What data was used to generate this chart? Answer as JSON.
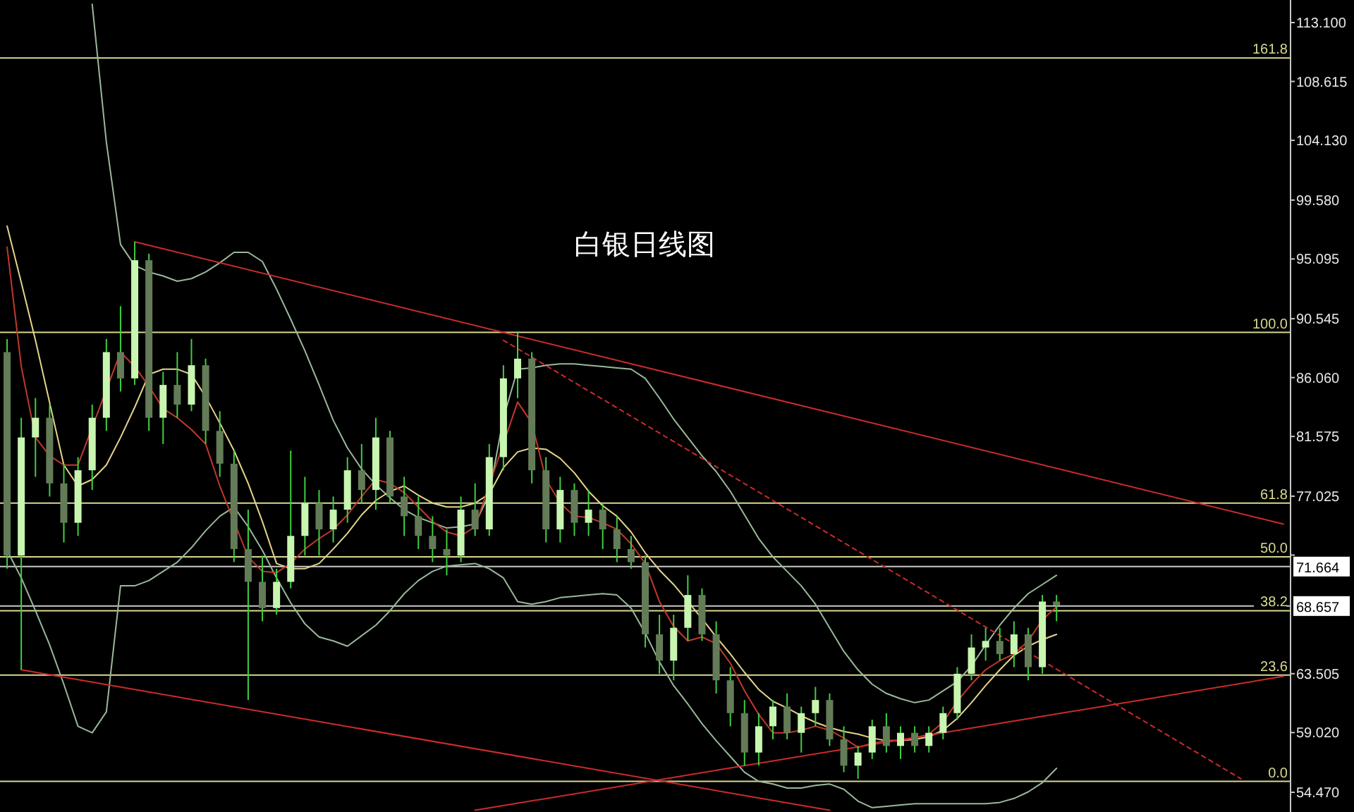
{
  "chart_data": {
    "type": "candlestick",
    "title": "白银日线图",
    "categories": [
      null,
      null,
      null,
      null,
      null,
      null,
      null,
      null,
      null,
      null,
      null,
      null,
      null,
      null,
      null,
      null,
      null,
      null,
      null,
      null,
      null,
      null,
      null,
      null,
      null,
      null,
      null,
      null,
      null,
      null,
      null,
      null,
      null,
      null,
      null,
      null,
      null,
      null,
      null,
      null,
      null,
      null,
      null,
      null,
      null,
      null,
      null,
      null,
      null,
      null,
      null,
      null,
      null,
      null,
      null,
      null,
      null,
      null,
      null,
      null,
      null,
      null,
      null,
      null,
      null,
      null,
      null,
      null,
      null,
      null,
      null,
      null,
      null,
      null,
      null,
      null,
      null,
      null,
      null,
      null,
      null,
      null,
      null,
      null,
      null,
      null,
      null,
      null,
      null,
      null,
      null
    ],
    "ylim": [
      52.97,
      114.82
    ],
    "tick_labels": "y",
    "yticks": [
      {
        "value": 113.1,
        "label": "113.100"
      },
      {
        "value": 108.615,
        "label": "108.615"
      },
      {
        "value": 104.13,
        "label": "104.130"
      },
      {
        "value": 99.58,
        "label": "99.580"
      },
      {
        "value": 95.095,
        "label": "95.095"
      },
      {
        "value": 90.545,
        "label": "90.545"
      },
      {
        "value": 86.06,
        "label": "86.060"
      },
      {
        "value": 81.575,
        "label": "81.575"
      },
      {
        "value": 77.025,
        "label": "77.025"
      },
      {
        "value": 72.54,
        "label": null
      },
      {
        "value": 63.505,
        "label": "63.505"
      },
      {
        "value": 59.02,
        "label": "59.020"
      },
      {
        "value": 54.47,
        "label": "54.470"
      }
    ],
    "ref_lines": [
      {
        "axis": "y",
        "value": 110.4,
        "color": "#d8d890"
      },
      {
        "axis": "y",
        "value": 89.5,
        "color": "#d8d890"
      },
      {
        "axis": "y",
        "value": 76.5,
        "color": "#d8d890"
      },
      {
        "axis": "y",
        "value": 72.4,
        "color": "#d8d890"
      },
      {
        "axis": "y",
        "value": 68.3,
        "color": "#d8d890"
      },
      {
        "axis": "y",
        "value": 63.4,
        "color": "#d8d890"
      },
      {
        "axis": "y",
        "value": 55.3,
        "color": "#d8d890"
      },
      {
        "axis": "y",
        "value": 71.664,
        "label": "71.664",
        "color": "#c8c8c8"
      },
      {
        "axis": "y",
        "value": 68.657,
        "label": "68.657",
        "color": "#c8c8c8"
      }
    ],
    "annotations": [
      {
        "text": "161.8",
        "y": 110.4
      },
      {
        "text": "100.0",
        "y": 89.5
      },
      {
        "text": "61.8",
        "y": 76.5
      },
      {
        "text": "50.0",
        "y": 72.4
      },
      {
        "text": "38.2",
        "y": 68.3
      },
      {
        "text": "23.6",
        "y": 63.4
      },
      {
        "text": "0.0",
        "y": 55.3
      }
    ],
    "series": [
      {
        "type": "candlestick",
        "colors": [
          "#647b58",
          "#c8f5b0",
          "#c8f5b0",
          "#647b58",
          "#647b58",
          "#c8f5b0",
          "#c8f5b0",
          "#c8f5b0",
          "#647b58",
          "#c8f5b0",
          "#647b58",
          "#c8f5b0",
          "#647b58",
          "#c8f5b0",
          "#647b58",
          "#647b58",
          "#647b58",
          "#647b58",
          "#647b58",
          "#c8f5b0",
          "#c8f5b0",
          "#c8f5b0",
          "#647b58",
          "#c8f5b0",
          "#c8f5b0",
          "#647b58",
          "#c8f5b0",
          "#647b58",
          "#647b58",
          "#647b58",
          "#647b58",
          "#647b58",
          "#c8f5b0",
          "#647b58",
          "#c8f5b0",
          "#c8f5b0",
          "#c8f5b0",
          "#647b58",
          "#647b58",
          "#c8f5b0",
          "#647b58",
          "#c8f5b0",
          "#647b58",
          "#647b58",
          "#647b58",
          "#647b58",
          "#647b58",
          "#c8f5b0",
          "#c8f5b0",
          "#647b58",
          "#647b58",
          "#647b58",
          "#647b58",
          "#c8f5b0",
          "#c8f5b0",
          "#647b58",
          "#c8f5b0",
          "#c8f5b0",
          "#647b58",
          "#647b58",
          "#c8f5b0",
          "#c8f5b0",
          "#647b58",
          "#c8f5b0",
          "#647b58",
          "#c8f5b0",
          "#c8f5b0",
          "#c8f5b0",
          "#c8f5b0",
          "#c8f5b0",
          "#647b58",
          "#c8f5b0",
          "#647b58",
          "#c8f5b0",
          "#647b58",
          null,
          null,
          null,
          null,
          null,
          null,
          null,
          null,
          null,
          null,
          null,
          null,
          null,
          null,
          null,
          null
        ],
        "ohlc": [
          [
            88.0,
            89.0,
            71.5,
            72.5
          ],
          [
            72.5,
            83.0,
            63.8,
            81.5
          ],
          [
            81.5,
            84.5,
            78.5,
            83.0
          ],
          [
            83.0,
            84.0,
            77.0,
            78.0
          ],
          [
            78.0,
            79.5,
            73.5,
            75.0
          ],
          [
            75.0,
            80.0,
            74.0,
            79.0
          ],
          [
            79.0,
            84.0,
            77.5,
            83.0
          ],
          [
            83.0,
            89.0,
            82.0,
            88.0
          ],
          [
            88.0,
            91.5,
            85.0,
            86.0
          ],
          [
            86.0,
            96.4,
            85.5,
            95.0
          ],
          [
            95.0,
            95.5,
            82.0,
            83.0
          ],
          [
            83.0,
            86.5,
            81.0,
            85.5
          ],
          [
            85.5,
            88.0,
            83.0,
            84.0
          ],
          [
            84.0,
            89.0,
            83.5,
            87.0
          ],
          [
            87.0,
            87.5,
            81.0,
            82.0
          ],
          [
            82.0,
            83.5,
            78.5,
            79.5
          ],
          [
            79.5,
            80.5,
            72.0,
            73.0
          ],
          [
            73.0,
            76.0,
            61.5,
            70.5
          ],
          [
            70.5,
            72.5,
            67.5,
            68.5
          ],
          [
            68.5,
            71.5,
            68.0,
            70.5
          ],
          [
            70.5,
            80.5,
            70.0,
            74.0
          ],
          [
            74.0,
            78.5,
            72.5,
            76.5
          ],
          [
            76.5,
            77.5,
            72.5,
            74.5
          ],
          [
            74.5,
            77.0,
            73.5,
            76.0
          ],
          [
            76.0,
            80.0,
            75.0,
            79.0
          ],
          [
            79.0,
            81.0,
            76.5,
            77.5
          ],
          [
            77.5,
            83.0,
            76.0,
            81.5
          ],
          [
            81.5,
            82.0,
            76.5,
            77.0
          ],
          [
            77.0,
            78.5,
            74.0,
            75.5
          ],
          [
            75.5,
            77.0,
            73.0,
            74.0
          ],
          [
            74.0,
            75.5,
            72.0,
            73.0
          ],
          [
            73.0,
            74.5,
            71.0,
            72.5
          ],
          [
            72.5,
            77.0,
            72.0,
            76.0
          ],
          [
            76.0,
            78.0,
            74.0,
            74.5
          ],
          [
            74.5,
            81.0,
            74.0,
            80.0
          ],
          [
            80.0,
            87.0,
            79.0,
            86.0
          ],
          [
            86.0,
            89.5,
            84.5,
            87.5
          ],
          [
            87.5,
            88.0,
            78.0,
            79.0
          ],
          [
            79.0,
            80.0,
            73.5,
            74.5
          ],
          [
            74.5,
            78.5,
            73.5,
            77.5
          ],
          [
            77.5,
            78.0,
            74.0,
            75.0
          ],
          [
            75.0,
            77.5,
            74.0,
            76.0
          ],
          [
            76.0,
            76.5,
            73.0,
            74.5
          ],
          [
            74.5,
            75.5,
            72.0,
            73.0
          ],
          [
            73.0,
            74.0,
            71.5,
            72.0
          ],
          [
            72.0,
            72.5,
            65.5,
            66.5
          ],
          [
            66.5,
            68.0,
            63.5,
            64.5
          ],
          [
            64.5,
            68.0,
            63.0,
            67.0
          ],
          [
            67.0,
            71.0,
            66.0,
            69.5
          ],
          [
            69.5,
            70.0,
            66.0,
            66.5
          ],
          [
            66.5,
            67.5,
            62.0,
            63.0
          ],
          [
            63.0,
            64.0,
            59.5,
            60.5
          ],
          [
            60.5,
            61.5,
            56.5,
            57.5
          ],
          [
            57.5,
            60.5,
            56.5,
            59.5
          ],
          [
            59.5,
            61.5,
            58.5,
            61.0
          ],
          [
            61.0,
            62.0,
            58.5,
            59.0
          ],
          [
            59.0,
            61.0,
            57.5,
            60.5
          ],
          [
            60.5,
            62.5,
            59.5,
            61.5
          ],
          [
            61.5,
            62.0,
            58.0,
            58.5
          ],
          [
            58.5,
            59.5,
            56.0,
            56.5
          ],
          [
            56.5,
            58.0,
            55.5,
            57.5
          ],
          [
            57.5,
            60.0,
            57.0,
            59.5
          ],
          [
            59.5,
            60.5,
            57.5,
            58.0
          ],
          [
            58.0,
            59.5,
            57.0,
            59.0
          ],
          [
            59.0,
            59.5,
            57.5,
            58.0
          ],
          [
            58.0,
            59.5,
            57.5,
            59.0
          ],
          [
            59.0,
            61.0,
            58.5,
            60.5
          ],
          [
            60.5,
            64.0,
            60.0,
            63.5
          ],
          [
            63.5,
            66.5,
            63.0,
            65.5
          ],
          [
            65.5,
            67.0,
            64.5,
            66.0
          ],
          [
            66.0,
            67.0,
            64.5,
            65.0
          ],
          [
            65.0,
            67.5,
            64.0,
            66.5
          ],
          [
            66.5,
            67.0,
            63.0,
            64.0
          ],
          [
            64.0,
            69.5,
            63.5,
            69.0
          ],
          [
            69.0,
            69.5,
            67.5,
            68.7
          ],
          null,
          null,
          null,
          null,
          null,
          null,
          null,
          null,
          null,
          null,
          null,
          null,
          null,
          null,
          null,
          null
        ]
      },
      {
        "type": "line",
        "color": "#9ab89a",
        "values": [
          null,
          null,
          null,
          null,
          null,
          null,
          114.5,
          104.0,
          96.2,
          94.6,
          94.1,
          93.8,
          93.4,
          93.6,
          94.1,
          94.8,
          95.6,
          95.6,
          94.9,
          92.8,
          90.5,
          88.1,
          85.5,
          82.8,
          80.7,
          79.1,
          77.9,
          76.9,
          76.0,
          75.4,
          75.0,
          74.6,
          74.7,
          74.9,
          77.2,
          83.0,
          86.7,
          86.8,
          87.0,
          87.1,
          87.1,
          87.0,
          86.9,
          86.8,
          86.7,
          86.0,
          84.5,
          82.9,
          81.5,
          80.1,
          78.9,
          77.4,
          75.6,
          73.8,
          72.4,
          71.3,
          70.2,
          68.8,
          67.0,
          65.2,
          63.8,
          62.7,
          62.0,
          61.6,
          61.3,
          61.5,
          62.2,
          62.9,
          64.1,
          65.7,
          67.2,
          68.5,
          69.6,
          70.3,
          71.0,
          null,
          null,
          null,
          null,
          null,
          null,
          null,
          null,
          null,
          null,
          null,
          null,
          null,
          null,
          null,
          null
        ]
      },
      {
        "type": "line",
        "color": "#9ab89a",
        "values": [
          72.9,
          70.8,
          68.3,
          65.7,
          62.7,
          59.5,
          59.0,
          60.6,
          70.2,
          70.2,
          70.6,
          71.3,
          72.0,
          73.1,
          74.4,
          75.5,
          76.2,
          74.7,
          72.9,
          70.8,
          68.9,
          67.3,
          66.3,
          66.0,
          65.6,
          66.4,
          67.2,
          68.3,
          69.6,
          70.6,
          71.3,
          71.7,
          71.8,
          71.9,
          71.5,
          70.8,
          69.0,
          68.8,
          69.0,
          69.3,
          69.4,
          69.5,
          69.6,
          69.5,
          68.5,
          66.6,
          64.4,
          62.6,
          61.2,
          59.7,
          58.4,
          57.2,
          56.0,
          55.3,
          55.1,
          54.8,
          54.8,
          55.0,
          55.1,
          54.7,
          53.8,
          53.3,
          53.4,
          53.5,
          53.6,
          53.6,
          53.6,
          53.6,
          53.6,
          53.6,
          53.7,
          54.0,
          54.5,
          55.2,
          56.3,
          null,
          null,
          null,
          null,
          null,
          null,
          null,
          null,
          null,
          null,
          null,
          null,
          null,
          null,
          null,
          null
        ]
      },
      {
        "type": "line",
        "color": "#e3d58a",
        "values": [
          97.6,
          93.3,
          88.9,
          null,
          79.4,
          77.8,
          78.3,
          79.4,
          81.5,
          83.8,
          86.3,
          86.7,
          86.7,
          86.3,
          84.6,
          82.6,
          80.5,
          78.0,
          75.1,
          71.9,
          71.5,
          71.5,
          71.9,
          73.0,
          74.2,
          75.6,
          76.7,
          77.4,
          77.8,
          77.1,
          76.5,
          76.2,
          76.2,
          76.5,
          77.2,
          79.2,
          80.4,
          80.7,
          80.6,
          79.9,
          78.8,
          77.4,
          76.3,
          75.5,
          74.3,
          72.7,
          71.4,
          70.3,
          69.0,
          67.7,
          66.3,
          65.0,
          63.6,
          62.3,
          61.4,
          60.9,
          60.3,
          59.8,
          59.4,
          59.1,
          58.9,
          58.6,
          58.4,
          58.4,
          58.5,
          58.7,
          59.2,
          60.1,
          61.3,
          62.6,
          63.8,
          64.9,
          65.6,
          66.1,
          66.5,
          null,
          null,
          null,
          null,
          null,
          null,
          null,
          null,
          null,
          null,
          null,
          null,
          null,
          null,
          null,
          null
        ]
      },
      {
        "type": "line",
        "color": "#c0392b",
        "values": [
          96.0,
          86.9,
          81.5,
          80.1,
          79.4,
          79.4,
          null,
          null,
          88.0,
          86.9,
          85.4,
          83.7,
          83.0,
          82.1,
          81.0,
          77.8,
          null,
          72.4,
          71.3,
          71.2,
          71.9,
          73.0,
          73.8,
          74.5,
          75.6,
          77.0,
          78.3,
          78.0,
          77.3,
          76.2,
          75.1,
          74.3,
          74.0,
          74.7,
          null,
          null,
          84.2,
          82.6,
          78.3,
          76.5,
          75.5,
          75.4,
          75.0,
          74.5,
          73.4,
          71.9,
          69.0,
          67.1,
          66.0,
          66.3,
          65.8,
          64.3,
          62.2,
          60.4,
          59.0,
          59.0,
          59.2,
          59.5,
          59.2,
          58.6,
          57.9,
          58.2,
          58.4,
          58.4,
          58.6,
          58.9,
          59.8,
          61.4,
          62.7,
          63.8,
          64.5,
          65.0,
          66.0,
          67.6,
          68.6,
          null,
          null,
          null,
          null,
          null,
          null,
          null,
          null,
          null,
          null,
          null,
          null,
          null,
          null,
          null,
          null
        ]
      },
      {
        "type": "line",
        "color": "#cc2b2b",
        "values": [
          null,
          null,
          null,
          null,
          null,
          null,
          null,
          null,
          null,
          96.4,
          null,
          null,
          null,
          null,
          null,
          null,
          null,
          null,
          null,
          null,
          null,
          null,
          null,
          null,
          null,
          null,
          null,
          null,
          null,
          null,
          null,
          null,
          null,
          null,
          null,
          null,
          null,
          null,
          null,
          null,
          null,
          null,
          null,
          null,
          null,
          null,
          null,
          null,
          null,
          null,
          null,
          null,
          null,
          null,
          null,
          null,
          null,
          null,
          null,
          null,
          null,
          null,
          null,
          null,
          null,
          null,
          null,
          null,
          null,
          null,
          null,
          null,
          null,
          null,
          null,
          null,
          null,
          null,
          null,
          null,
          null,
          null,
          null,
          null,
          null,
          null,
          null,
          null,
          null,
          null,
          74.9
        ]
      },
      {
        "type": "line",
        "color": "#cc2b2b",
        "values": [
          null,
          63.8,
          null,
          null,
          null,
          null,
          null,
          null,
          null,
          null,
          null,
          null,
          null,
          null,
          null,
          null,
          null,
          null,
          null,
          null,
          null,
          null,
          null,
          null,
          null,
          null,
          null,
          null,
          null,
          null,
          null,
          null,
          null,
          null,
          null,
          null,
          null,
          null,
          null,
          null,
          null,
          null,
          null,
          null,
          null,
          null,
          null,
          null,
          null,
          null,
          null,
          null,
          null,
          null,
          null,
          null,
          null,
          null,
          53.1,
          null,
          null,
          null,
          null,
          null,
          null,
          null,
          null,
          null,
          null,
          null,
          null,
          null,
          null,
          null,
          null,
          null,
          null,
          null,
          null,
          null,
          null,
          null,
          null,
          null,
          null,
          null,
          null,
          null,
          null,
          null,
          null
        ]
      },
      {
        "type": "line",
        "color": "#cc2b2b",
        "values": [
          null,
          null,
          null,
          null,
          null,
          null,
          null,
          null,
          null,
          null,
          null,
          null,
          null,
          null,
          null,
          null,
          null,
          null,
          null,
          null,
          null,
          null,
          null,
          null,
          null,
          null,
          null,
          null,
          null,
          null,
          null,
          null,
          null,
          53.1,
          null,
          null,
          null,
          null,
          null,
          null,
          null,
          null,
          null,
          null,
          null,
          null,
          null,
          null,
          null,
          null,
          null,
          null,
          null,
          null,
          null,
          null,
          null,
          null,
          null,
          null,
          null,
          null,
          null,
          null,
          null,
          null,
          null,
          null,
          null,
          null,
          null,
          null,
          null,
          null,
          null,
          null,
          null,
          null,
          null,
          null,
          null,
          null,
          null,
          null,
          null,
          null,
          null,
          null,
          null,
          null,
          63.3
        ]
      },
      {
        "type": "line",
        "color": "#cc2b2b",
        "line_style": "dotted",
        "values": [
          null,
          null,
          null,
          null,
          null,
          null,
          null,
          null,
          null,
          null,
          null,
          null,
          null,
          null,
          null,
          null,
          null,
          null,
          null,
          null,
          null,
          null,
          null,
          null,
          null,
          null,
          null,
          null,
          null,
          null,
          null,
          null,
          null,
          null,
          null,
          88.9,
          null,
          null,
          null,
          null,
          null,
          null,
          null,
          null,
          null,
          null,
          null,
          null,
          null,
          null,
          null,
          null,
          null,
          null,
          null,
          null,
          null,
          null,
          null,
          null,
          null,
          null,
          null,
          null,
          null,
          null,
          null,
          null,
          null,
          null,
          null,
          null,
          null,
          null,
          null,
          null,
          null,
          null,
          null,
          null,
          null,
          null,
          null,
          null,
          null,
          null,
          null,
          55.5,
          null,
          null,
          null
        ]
      }
    ]
  }
}
